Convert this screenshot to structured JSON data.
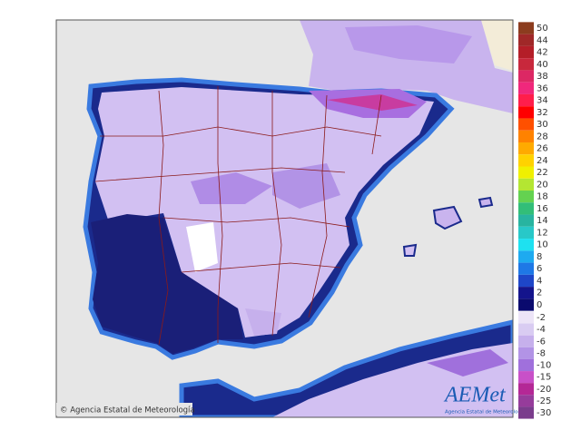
{
  "map": {
    "credit": "© Agencia Estatal de Meteorología",
    "logo": {
      "brand": "AEMet",
      "caption": "Agencia Estatal de Meteorología"
    },
    "legend": {
      "upper": [
        {
          "label": 50,
          "color": "#8c3c1e"
        },
        {
          "label": 44,
          "color": "#a02828"
        },
        {
          "label": 42,
          "color": "#b41e28"
        },
        {
          "label": 40,
          "color": "#c8283c"
        },
        {
          "label": 38,
          "color": "#dc2864"
        },
        {
          "label": 36,
          "color": "#f0287c"
        },
        {
          "label": 34,
          "color": "#ff1e4b"
        },
        {
          "label": 32,
          "color": "#ff0000"
        },
        {
          "label": 30,
          "color": "#ff5000"
        },
        {
          "label": 28,
          "color": "#ff8200"
        },
        {
          "label": 26,
          "color": "#ffaa00"
        },
        {
          "label": 24,
          "color": "#ffd200"
        },
        {
          "label": 22,
          "color": "#f0f000"
        },
        {
          "label": 20,
          "color": "#b4e632"
        },
        {
          "label": 18,
          "color": "#64d250"
        },
        {
          "label": 16,
          "color": "#32be78"
        },
        {
          "label": 14,
          "color": "#28b4a0"
        },
        {
          "label": 12,
          "color": "#28c8c8"
        },
        {
          "label": 10,
          "color": "#1ee1f0"
        },
        {
          "label": 8,
          "color": "#1eaaf0"
        },
        {
          "label": 6,
          "color": "#1e78e6"
        },
        {
          "label": 4,
          "color": "#1e46c8"
        },
        {
          "label": 2,
          "color": "#14148c"
        },
        {
          "label": 0,
          "color": "#0a0a6e"
        }
      ],
      "lower": [
        {
          "label": -2,
          "color": "#ece4f7"
        },
        {
          "label": -4,
          "color": "#d9ccf2"
        },
        {
          "label": -6,
          "color": "#c6b0ec"
        },
        {
          "label": -8,
          "color": "#b293e6"
        },
        {
          "label": -10,
          "color": "#a070dc"
        },
        {
          "label": -15,
          "color": "#c850c8"
        },
        {
          "label": -20,
          "color": "#b42896"
        },
        {
          "label": -25,
          "color": "#963c9b"
        },
        {
          "label": -30,
          "color": "#7a3c8c"
        }
      ]
    }
  }
}
